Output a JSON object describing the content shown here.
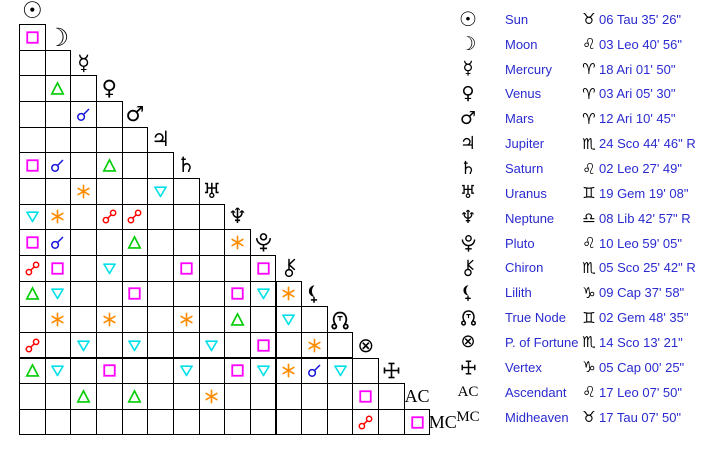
{
  "colors": {
    "conjunction": "#1515dd",
    "sextile": "#ff8c00",
    "square": "#ff00ff",
    "trine": "#00cc00",
    "opposition": "#ff0000",
    "quincunx": "#00e0e8",
    "table_text": "#2a2ad0",
    "glyph": "#000000",
    "grid_border": "#000000",
    "background": "#ffffff"
  },
  "glyphs": {
    "sun": "☉",
    "moon": "☽",
    "mercury": "☿",
    "venus": "♀",
    "mars": "♂",
    "jupiter": "♃",
    "saturn": "♄",
    "uranus": "♅",
    "neptune": "♆",
    "fortune": "⊗",
    "ac": "AC",
    "mc": "MC"
  },
  "signs": {
    "aries": "♈",
    "taurus": "♉",
    "gemini": "♊",
    "leo": "♌",
    "libra": "♎",
    "scorpio": "♏",
    "capricorn": "♑"
  },
  "planets": [
    {
      "key": "sun",
      "name": "Sun",
      "sign": "taurus",
      "position": "06 Tau 35' 26\""
    },
    {
      "key": "moon",
      "name": "Moon",
      "sign": "leo",
      "position": "03 Leo 40' 56\""
    },
    {
      "key": "mercury",
      "name": "Mercury",
      "sign": "aries",
      "position": "18 Ari 01' 50\""
    },
    {
      "key": "venus",
      "name": "Venus",
      "sign": "aries",
      "position": "03 Ari 05' 30\""
    },
    {
      "key": "mars",
      "name": "Mars",
      "sign": "aries",
      "position": "12 Ari 10' 45\""
    },
    {
      "key": "jupiter",
      "name": "Jupiter",
      "sign": "scorpio",
      "position": "24 Sco 44' 46\" R"
    },
    {
      "key": "saturn",
      "name": "Saturn",
      "sign": "leo",
      "position": "02 Leo 27' 49\""
    },
    {
      "key": "uranus",
      "name": "Uranus",
      "sign": "gemini",
      "position": "19 Gem 19' 08\""
    },
    {
      "key": "neptune",
      "name": "Neptune",
      "sign": "libra",
      "position": "08 Lib 42' 57\" R"
    },
    {
      "key": "pluto",
      "name": "Pluto",
      "sign": "leo",
      "position": "10 Leo 59' 05\""
    },
    {
      "key": "chiron",
      "name": "Chiron",
      "sign": "scorpio",
      "position": "05 Sco 25' 42\" R"
    },
    {
      "key": "lilith",
      "name": "Lilith",
      "sign": "capricorn",
      "position": "09 Cap 37' 58\""
    },
    {
      "key": "true-node",
      "name": "True Node",
      "sign": "gemini",
      "position": "02 Gem 48' 35\""
    },
    {
      "key": "fortune",
      "name": "P. of Fortune",
      "sign": "scorpio",
      "position": "14 Sco 13' 21\""
    },
    {
      "key": "vertex",
      "name": "Vertex",
      "sign": "capricorn",
      "position": "05 Cap 00' 25\""
    },
    {
      "key": "ac",
      "name": "Ascendant",
      "sign": "leo",
      "position": "17 Leo 07' 50\""
    },
    {
      "key": "mc",
      "name": "Midheaven",
      "sign": "taurus",
      "position": "17 Tau 07' 50\""
    }
  ],
  "aspects": [
    {
      "row": 2,
      "col": 1,
      "type": "square"
    },
    {
      "row": 4,
      "col": 2,
      "type": "trine"
    },
    {
      "row": 5,
      "col": 3,
      "type": "conjunction"
    },
    {
      "row": 7,
      "col": 1,
      "type": "square"
    },
    {
      "row": 7,
      "col": 2,
      "type": "conjunction"
    },
    {
      "row": 7,
      "col": 4,
      "type": "trine"
    },
    {
      "row": 8,
      "col": 3,
      "type": "sextile"
    },
    {
      "row": 8,
      "col": 6,
      "type": "quincunx"
    },
    {
      "row": 9,
      "col": 1,
      "type": "quincunx"
    },
    {
      "row": 9,
      "col": 2,
      "type": "sextile"
    },
    {
      "row": 9,
      "col": 4,
      "type": "opposition"
    },
    {
      "row": 9,
      "col": 5,
      "type": "opposition"
    },
    {
      "row": 10,
      "col": 1,
      "type": "square"
    },
    {
      "row": 10,
      "col": 2,
      "type": "conjunction"
    },
    {
      "row": 10,
      "col": 5,
      "type": "trine"
    },
    {
      "row": 10,
      "col": 9,
      "type": "sextile"
    },
    {
      "row": 11,
      "col": 1,
      "type": "opposition"
    },
    {
      "row": 11,
      "col": 2,
      "type": "square"
    },
    {
      "row": 11,
      "col": 4,
      "type": "quincunx"
    },
    {
      "row": 11,
      "col": 7,
      "type": "square"
    },
    {
      "row": 11,
      "col": 10,
      "type": "square"
    },
    {
      "row": 12,
      "col": 1,
      "type": "trine"
    },
    {
      "row": 12,
      "col": 2,
      "type": "quincunx"
    },
    {
      "row": 12,
      "col": 5,
      "type": "square"
    },
    {
      "row": 12,
      "col": 9,
      "type": "square"
    },
    {
      "row": 12,
      "col": 10,
      "type": "quincunx"
    },
    {
      "row": 12,
      "col": 11,
      "type": "sextile"
    },
    {
      "row": 13,
      "col": 2,
      "type": "sextile"
    },
    {
      "row": 13,
      "col": 4,
      "type": "sextile"
    },
    {
      "row": 13,
      "col": 7,
      "type": "sextile"
    },
    {
      "row": 13,
      "col": 9,
      "type": "trine"
    },
    {
      "row": 13,
      "col": 11,
      "type": "quincunx"
    },
    {
      "row": 14,
      "col": 1,
      "type": "opposition"
    },
    {
      "row": 14,
      "col": 3,
      "type": "quincunx"
    },
    {
      "row": 14,
      "col": 5,
      "type": "quincunx"
    },
    {
      "row": 14,
      "col": 8,
      "type": "quincunx"
    },
    {
      "row": 14,
      "col": 10,
      "type": "square"
    },
    {
      "row": 14,
      "col": 12,
      "type": "sextile"
    },
    {
      "row": 15,
      "col": 1,
      "type": "trine"
    },
    {
      "row": 15,
      "col": 2,
      "type": "quincunx"
    },
    {
      "row": 15,
      "col": 4,
      "type": "square"
    },
    {
      "row": 15,
      "col": 7,
      "type": "quincunx"
    },
    {
      "row": 15,
      "col": 9,
      "type": "square"
    },
    {
      "row": 15,
      "col": 10,
      "type": "quincunx"
    },
    {
      "row": 15,
      "col": 11,
      "type": "sextile"
    },
    {
      "row": 15,
      "col": 12,
      "type": "conjunction"
    },
    {
      "row": 15,
      "col": 13,
      "type": "quincunx"
    },
    {
      "row": 16,
      "col": 3,
      "type": "trine"
    },
    {
      "row": 16,
      "col": 5,
      "type": "trine"
    },
    {
      "row": 16,
      "col": 8,
      "type": "sextile"
    },
    {
      "row": 16,
      "col": 14,
      "type": "square"
    },
    {
      "row": 17,
      "col": 14,
      "type": "opposition"
    },
    {
      "row": 17,
      "col": 16,
      "type": "square"
    }
  ]
}
